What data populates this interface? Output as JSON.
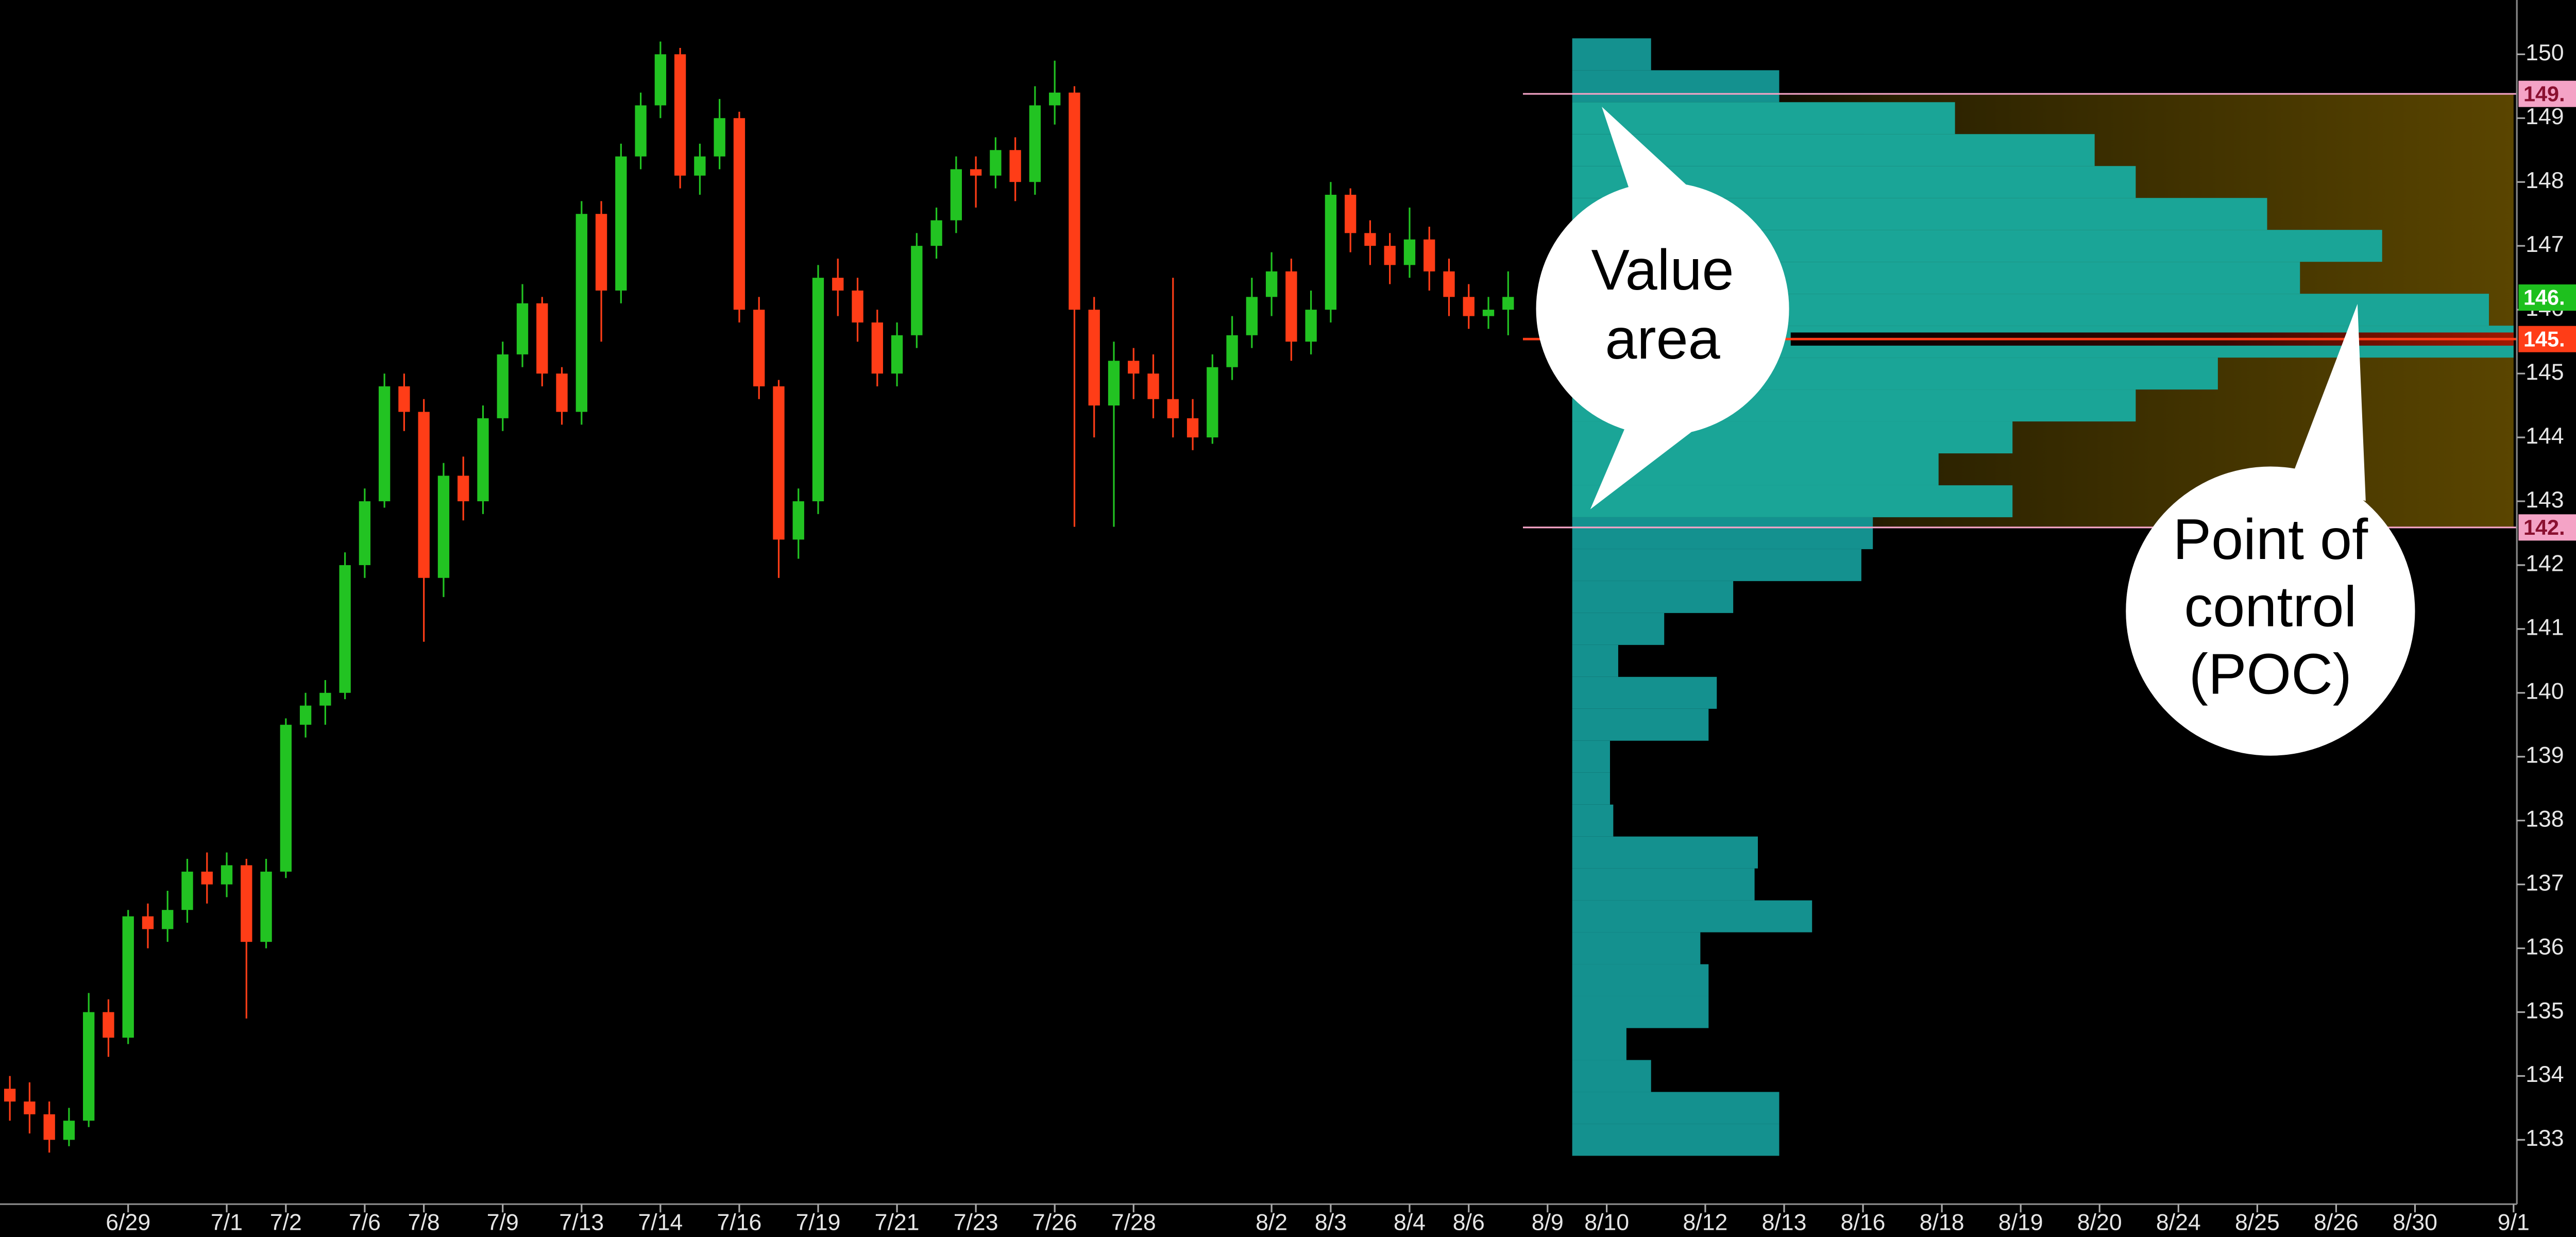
{
  "chart_data": {
    "type": "candlestick",
    "up_color": "#22c322",
    "down_color": "#ff3d17",
    "xlim": [
      0,
      127
    ],
    "xticks": [
      {
        "value": 6,
        "label": "6/29"
      },
      {
        "value": 11,
        "label": "7/1"
      },
      {
        "value": 14,
        "label": "7/2"
      },
      {
        "value": 18,
        "label": "7/6"
      },
      {
        "value": 21,
        "label": "7/8"
      },
      {
        "value": 25,
        "label": "7/9"
      },
      {
        "value": 29,
        "label": "7/13"
      },
      {
        "value": 33,
        "label": "7/14"
      },
      {
        "value": 37,
        "label": "7/16"
      },
      {
        "value": 41,
        "label": "7/19"
      },
      {
        "value": 45,
        "label": "7/21"
      },
      {
        "value": 49,
        "label": "7/23"
      },
      {
        "value": 53,
        "label": "7/26"
      },
      {
        "value": 57,
        "label": "7/28"
      },
      {
        "value": 64,
        "label": "8/2"
      },
      {
        "value": 67,
        "label": "8/3"
      },
      {
        "value": 71,
        "label": "8/4"
      },
      {
        "value": 74,
        "label": "8/6"
      },
      {
        "value": 78,
        "label": "8/9"
      },
      {
        "value": 81,
        "label": "8/10"
      },
      {
        "value": 86,
        "label": "8/12"
      },
      {
        "value": 90,
        "label": "8/13"
      },
      {
        "value": 94,
        "label": "8/16"
      },
      {
        "value": 98,
        "label": "8/18"
      },
      {
        "value": 102,
        "label": "8/19"
      },
      {
        "value": 106,
        "label": "8/20"
      },
      {
        "value": 110,
        "label": "8/24"
      },
      {
        "value": 114,
        "label": "8/25"
      },
      {
        "value": 118,
        "label": "8/26"
      },
      {
        "value": 122,
        "label": "8/30"
      },
      {
        "value": 127,
        "label": "9/1"
      }
    ],
    "ylim": [
      132.07,
      150.85
    ],
    "yticks": [
      133,
      134,
      135,
      136,
      137,
      138,
      139,
      140,
      141,
      142,
      143,
      144,
      145,
      146,
      147,
      148,
      149,
      150
    ],
    "open": [
      133.8,
      133.6,
      133.4,
      133.0,
      133.3,
      135.0,
      134.6,
      136.5,
      136.3,
      136.6,
      137.2,
      137.0,
      137.3,
      136.1,
      137.2,
      139.5,
      139.8,
      140.0,
      142.0,
      143.0,
      144.8,
      144.4,
      141.8,
      143.4,
      143.0,
      144.3,
      145.3,
      146.1,
      145.0,
      144.4,
      147.5,
      146.3,
      148.4,
      149.2,
      150.0,
      148.1,
      148.4,
      149.0,
      146.0,
      144.8,
      142.4,
      143.0,
      146.5,
      146.3,
      145.8,
      145.0,
      145.6,
      147.0,
      147.4,
      148.2,
      148.1,
      148.5,
      148.0,
      149.2,
      149.4,
      146.0,
      144.5,
      145.2,
      145.0,
      144.6,
      144.3,
      144.0,
      145.1,
      145.6,
      146.2,
      146.6,
      145.5,
      146.0,
      147.8,
      147.2,
      147.0,
      146.7,
      147.1,
      146.6,
      146.2,
      145.9,
      146.0
    ],
    "high": [
      134.0,
      133.9,
      133.6,
      133.5,
      135.3,
      135.2,
      136.6,
      136.7,
      136.9,
      137.4,
      137.5,
      137.5,
      137.4,
      137.4,
      139.6,
      140.0,
      140.2,
      142.2,
      143.2,
      145.0,
      145.0,
      144.6,
      143.6,
      143.7,
      144.5,
      145.5,
      146.4,
      146.2,
      145.1,
      147.7,
      147.7,
      148.6,
      149.4,
      150.2,
      150.1,
      148.6,
      149.3,
      149.1,
      146.2,
      144.9,
      143.2,
      146.7,
      146.8,
      146.5,
      146.0,
      145.8,
      147.2,
      147.6,
      148.4,
      148.4,
      148.7,
      148.7,
      149.5,
      149.9,
      149.5,
      146.2,
      145.5,
      145.4,
      145.3,
      146.5,
      144.6,
      145.3,
      145.9,
      146.5,
      146.9,
      146.8,
      146.3,
      148.0,
      147.9,
      147.4,
      147.2,
      147.6,
      147.3,
      146.8,
      146.4,
      146.2,
      146.6
    ],
    "low": [
      133.3,
      133.1,
      132.8,
      132.9,
      133.2,
      134.3,
      134.5,
      136.0,
      136.1,
      136.4,
      136.7,
      136.8,
      134.9,
      136.0,
      137.1,
      139.3,
      139.5,
      139.9,
      141.8,
      142.9,
      144.1,
      140.8,
      141.5,
      142.7,
      142.8,
      144.1,
      145.1,
      144.8,
      144.2,
      144.2,
      145.5,
      146.1,
      148.2,
      149.0,
      147.9,
      147.8,
      148.2,
      145.8,
      144.6,
      141.8,
      142.1,
      142.8,
      145.9,
      145.5,
      144.8,
      144.8,
      145.4,
      146.8,
      147.2,
      147.6,
      147.9,
      147.7,
      147.8,
      148.9,
      142.6,
      144.0,
      142.6,
      144.6,
      144.3,
      144.0,
      143.8,
      143.9,
      144.9,
      145.4,
      145.9,
      145.2,
      145.3,
      145.8,
      146.9,
      146.7,
      146.4,
      146.5,
      146.3,
      145.9,
      145.7,
      145.7,
      145.6
    ],
    "close": [
      133.6,
      133.4,
      133.0,
      133.3,
      135.0,
      134.6,
      136.5,
      136.3,
      136.6,
      137.2,
      137.0,
      137.3,
      136.1,
      137.2,
      139.5,
      139.8,
      140.0,
      142.0,
      143.0,
      144.8,
      144.4,
      141.8,
      143.4,
      143.0,
      144.3,
      145.3,
      146.1,
      145.0,
      144.4,
      147.5,
      146.3,
      148.4,
      149.2,
      150.0,
      148.1,
      148.4,
      149.0,
      146.0,
      144.8,
      142.4,
      143.0,
      146.5,
      146.3,
      145.8,
      145.0,
      145.6,
      147.0,
      147.4,
      148.2,
      148.1,
      148.5,
      148.0,
      149.2,
      149.4,
      146.0,
      144.5,
      145.2,
      145.0,
      144.6,
      144.3,
      144.0,
      145.1,
      145.6,
      146.2,
      146.6,
      145.5,
      146.0,
      147.8,
      147.2,
      147.0,
      146.7,
      147.1,
      146.6,
      146.2,
      145.9,
      146.0,
      146.2
    ],
    "profile": {
      "color": "#14918f",
      "value_area_color": "#1aa597",
      "bin_height": 0.5,
      "prices": [
        150.0,
        149.5,
        149.0,
        148.5,
        148.0,
        147.5,
        147.0,
        146.5,
        146.0,
        145.5,
        145.0,
        144.5,
        144.0,
        143.5,
        143.0,
        142.5,
        142.0,
        141.5,
        141.0,
        140.5,
        140.0,
        139.5,
        139.0,
        138.5,
        138.0,
        137.5,
        137.0,
        136.5,
        136.0,
        135.5,
        135.0,
        134.5,
        134.0,
        133.5,
        133.0
      ],
      "values": [
        48,
        126,
        233,
        318,
        343,
        423,
        493,
        443,
        558,
        573,
        393,
        343,
        268,
        223,
        268,
        183,
        176,
        98,
        56,
        28,
        88,
        83,
        23,
        23,
        25,
        113,
        111,
        146,
        78,
        83,
        83,
        33,
        48,
        126,
        126
      ]
    },
    "markers": {
      "value_area_high": {
        "value": 149.38,
        "label": "149.",
        "color": "#f4a3c6",
        "text_color": "#8a1030",
        "line": true
      },
      "last_price": {
        "value": 146.19,
        "label": "146.",
        "color": "#1ec01e",
        "text_color": "#ffffff",
        "line": false
      },
      "point_of_control": {
        "value": 145.54,
        "label": "145.",
        "color": "#ff3d17",
        "text_color": "#ffffff",
        "line": true
      },
      "value_area_low": {
        "value": 142.59,
        "label": "142.",
        "color": "#f4a3c6",
        "text_color": "#8a1030",
        "line": true
      }
    },
    "annotations": [
      {
        "lines": [
          "Value",
          "area"
        ]
      },
      {
        "lines": [
          "Point of",
          "control",
          "(POC)"
        ]
      }
    ]
  }
}
